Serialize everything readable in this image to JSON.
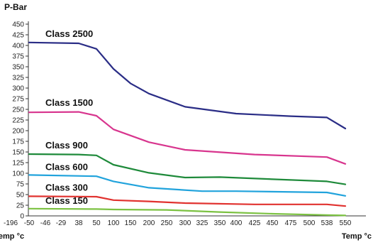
{
  "chart_data": {
    "type": "line",
    "title": "",
    "ylabel": "P-Bar",
    "xlabel": "Temp °c",
    "xlabel_left": "Temp °c",
    "ylim": [
      0,
      450
    ],
    "yticks": [
      0,
      25,
      50,
      75,
      100,
      125,
      150,
      175,
      200,
      225,
      250,
      275,
      300,
      325,
      350,
      375,
      400,
      425,
      450
    ],
    "categories": [
      "-196",
      "-50",
      "-46",
      "-29",
      "38",
      "50",
      "100",
      "150",
      "200",
      "250",
      "300",
      "325",
      "350",
      "400",
      "425",
      "450",
      "475",
      "500",
      "538",
      "550"
    ],
    "grid": false,
    "series": [
      {
        "name": "Class 2500",
        "color": "#2a2d86",
        "x": [
          "-50",
          "38",
          "50",
          "100",
          "150",
          "200",
          "300",
          "400",
          "475",
          "538",
          "550"
        ],
        "values": [
          407,
          405,
          392,
          345,
          311,
          287,
          256,
          240,
          234,
          231,
          205
        ]
      },
      {
        "name": "Class 1500",
        "color": "#d8358e",
        "x": [
          "-50",
          "38",
          "50",
          "100",
          "200",
          "300",
          "425",
          "538",
          "550"
        ],
        "values": [
          243,
          244,
          235,
          203,
          173,
          155,
          144,
          138,
          122
        ]
      },
      {
        "name": "Class 900",
        "color": "#1e8a3a",
        "x": [
          "-50",
          "38",
          "50",
          "100",
          "200",
          "300",
          "350",
          "538",
          "550"
        ],
        "values": [
          145,
          144,
          142,
          120,
          101,
          90,
          91,
          81,
          74
        ]
      },
      {
        "name": "Class 600",
        "color": "#21a3dc",
        "x": [
          "-50",
          "50",
          "100",
          "200",
          "325",
          "400",
          "538",
          "550"
        ],
        "values": [
          96,
          93,
          81,
          66,
          58,
          58,
          55,
          47
        ]
      },
      {
        "name": "Class 300",
        "color": "#e1322f",
        "x": [
          "-50",
          "50",
          "100",
          "200",
          "300",
          "425",
          "538",
          "550"
        ],
        "values": [
          46,
          45,
          37,
          34,
          30,
          27,
          27,
          23
        ]
      },
      {
        "name": "Class 150",
        "color": "#7cc242",
        "x": [
          "-50",
          "50",
          "100",
          "250",
          "350",
          "450",
          "538",
          "550"
        ],
        "values": [
          17,
          16,
          15,
          14,
          9,
          5,
          2,
          1
        ]
      }
    ]
  }
}
